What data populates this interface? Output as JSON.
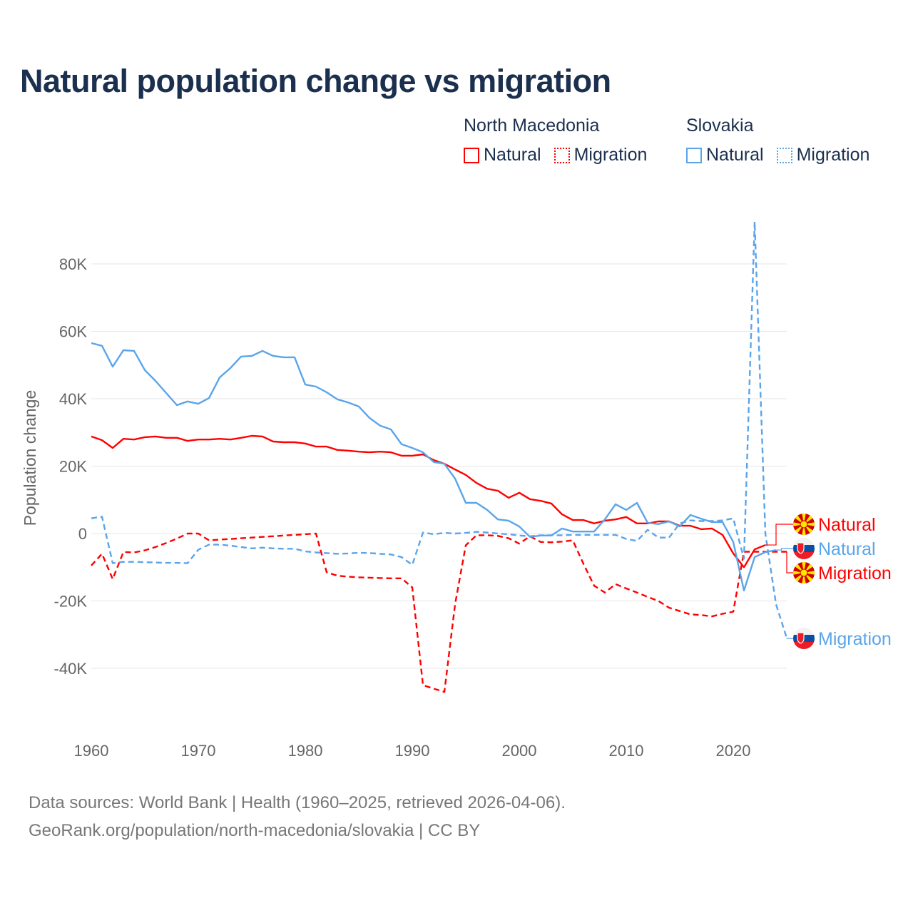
{
  "title": "Natural population change vs migration",
  "legend": {
    "groups": [
      {
        "name": "North Macedonia",
        "items": [
          {
            "label": "Natural",
            "style": "solid"
          },
          {
            "label": "Migration",
            "style": "dotted"
          }
        ],
        "color": "#ff0000"
      },
      {
        "name": "Slovakia",
        "items": [
          {
            "label": "Natural",
            "style": "solid"
          },
          {
            "label": "Migration",
            "style": "dotted"
          }
        ],
        "color": "#5aa5ea"
      }
    ]
  },
  "footer": {
    "line1": "Data sources: World Bank | Health (1960–2025, retrieved 2026-04-06).",
    "line2": "GeoRank.org/population/north-macedonia/slovakia | CC BY"
  },
  "chart_data": {
    "type": "line",
    "title": "Natural population change vs migration",
    "xlabel": "",
    "ylabel": "Population change",
    "xlim": [
      1960,
      2025
    ],
    "ylim": [
      -50000,
      95000
    ],
    "grid": true,
    "legend_position": "top-right",
    "x_ticks": [
      1960,
      1970,
      1980,
      1990,
      2000,
      2010,
      2020
    ],
    "y_ticks": [
      {
        "v": 80000,
        "label": "80K"
      },
      {
        "v": 60000,
        "label": "60K"
      },
      {
        "v": 40000,
        "label": "40K"
      },
      {
        "v": 20000,
        "label": "20K"
      },
      {
        "v": 0,
        "label": "0"
      },
      {
        "v": -20000,
        "label": "-20K"
      },
      {
        "v": -40000,
        "label": "-40K"
      }
    ],
    "start_year": 1960,
    "series": [
      {
        "name": "North Macedonia Natural",
        "end_label": "Natural",
        "flag": "north-macedonia",
        "color": "#ff0000",
        "dash": false,
        "values_k": [
          28.8,
          27.7,
          25.4,
          28.1,
          27.9,
          28.6,
          28.8,
          28.4,
          28.4,
          27.5,
          27.9,
          27.9,
          28.1,
          27.9,
          28.4,
          29.0,
          28.8,
          27.3,
          27.1,
          27.1,
          26.7,
          25.8,
          25.8,
          24.8,
          24.6,
          24.3,
          24.1,
          24.3,
          24.1,
          23.1,
          23.1,
          23.5,
          21.8,
          20.7,
          19.0,
          17.4,
          15.0,
          13.3,
          12.7,
          10.6,
          12.1,
          10.2,
          9.7,
          8.9,
          5.7,
          4.0,
          4.0,
          3.0,
          3.8,
          4.2,
          4.9,
          3.0,
          3.0,
          3.6,
          3.6,
          2.3,
          2.3,
          1.3,
          1.5,
          -0.4,
          -5.9,
          -10.0,
          -4.7,
          -3.4
        ]
      },
      {
        "name": "North Macedonia Migration",
        "end_label": "Migration",
        "flag": "north-macedonia",
        "color": "#ff0000",
        "dash": true,
        "values_k": [
          -9.5,
          -6,
          -13.5,
          -5.5,
          -5.6,
          -5,
          -4,
          -2.8,
          -1.5,
          0,
          0,
          -2,
          -1.8,
          -1.6,
          -1.4,
          -1.2,
          -1,
          -0.8,
          -0.6,
          -0.4,
          -0.2,
          0,
          -11.5,
          -12.5,
          -12.8,
          -13,
          -13.1,
          -13.2,
          -13.3,
          -13.3,
          -16,
          -45,
          -46,
          -47,
          -21,
          -3.5,
          -0.5,
          -0.5,
          -0.7,
          -1.4,
          -3,
          -0.8,
          -2.5,
          -2.6,
          -2.4,
          -2,
          -9,
          -15.5,
          -17.5,
          -15,
          -16.3,
          -17.5,
          -18.8,
          -20,
          -22,
          -23,
          -24,
          -24.2,
          -24.6,
          -23.8,
          -23.2,
          -5.4,
          -5.4,
          -5.4,
          -5.4,
          -5.4
        ]
      },
      {
        "name": "Slovakia Natural",
        "end_label": "Natural",
        "flag": "slovakia",
        "color": "#5aa5ea",
        "dash": false,
        "values_k": [
          56.5,
          55.7,
          49.5,
          54.4,
          54.2,
          48.5,
          45.3,
          41.7,
          38.1,
          39.2,
          38.5,
          40.2,
          46.3,
          49.1,
          52.5,
          52.7,
          54.2,
          52.7,
          52.3,
          52.3,
          44.2,
          43.6,
          41.9,
          39.8,
          38.9,
          37.7,
          34.3,
          32,
          30.9,
          26.5,
          25.4,
          24.1,
          21.2,
          20.7,
          16.3,
          9.1,
          9.1,
          7,
          4.2,
          3.8,
          2.1,
          -1,
          -0.6,
          -0.6,
          1.5,
          0.6,
          0.6,
          0.6,
          4.2,
          8.7,
          7,
          9.1,
          3.2,
          2.8,
          3.6,
          2.1,
          5.5,
          4.4,
          3.4,
          3.4,
          -2.5,
          -16.9,
          -7,
          -5.5,
          -4.9
        ]
      },
      {
        "name": "Slovakia Migration",
        "end_label": "Migration",
        "flag": "slovakia",
        "color": "#5aa5ea",
        "dash": true,
        "values_k": [
          4.5,
          5,
          -8.8,
          -8.4,
          -8.4,
          -8.5,
          -8.6,
          -8.7,
          -8.7,
          -8.8,
          -4.8,
          -3.3,
          -3.3,
          -3.6,
          -4,
          -4.4,
          -4.2,
          -4.4,
          -4.5,
          -4.5,
          -5.3,
          -5.6,
          -5.8,
          -6,
          -5.9,
          -5.7,
          -5.8,
          -6,
          -6.2,
          -7,
          -9.3,
          0.3,
          -0.2,
          0.2,
          0,
          0.2,
          0.5,
          0.3,
          0,
          -0.2,
          -0.6,
          -0.8,
          -0.5,
          -0.5,
          -0.5,
          -0.4,
          -0.4,
          -0.4,
          -0.4,
          -0.4,
          -1.6,
          -2.2,
          1.1,
          -1.2,
          -1.2,
          3,
          3.9,
          3.7,
          3.7,
          3.9,
          4.5,
          -7.5,
          92.5,
          0,
          -21,
          -31
        ]
      }
    ]
  }
}
